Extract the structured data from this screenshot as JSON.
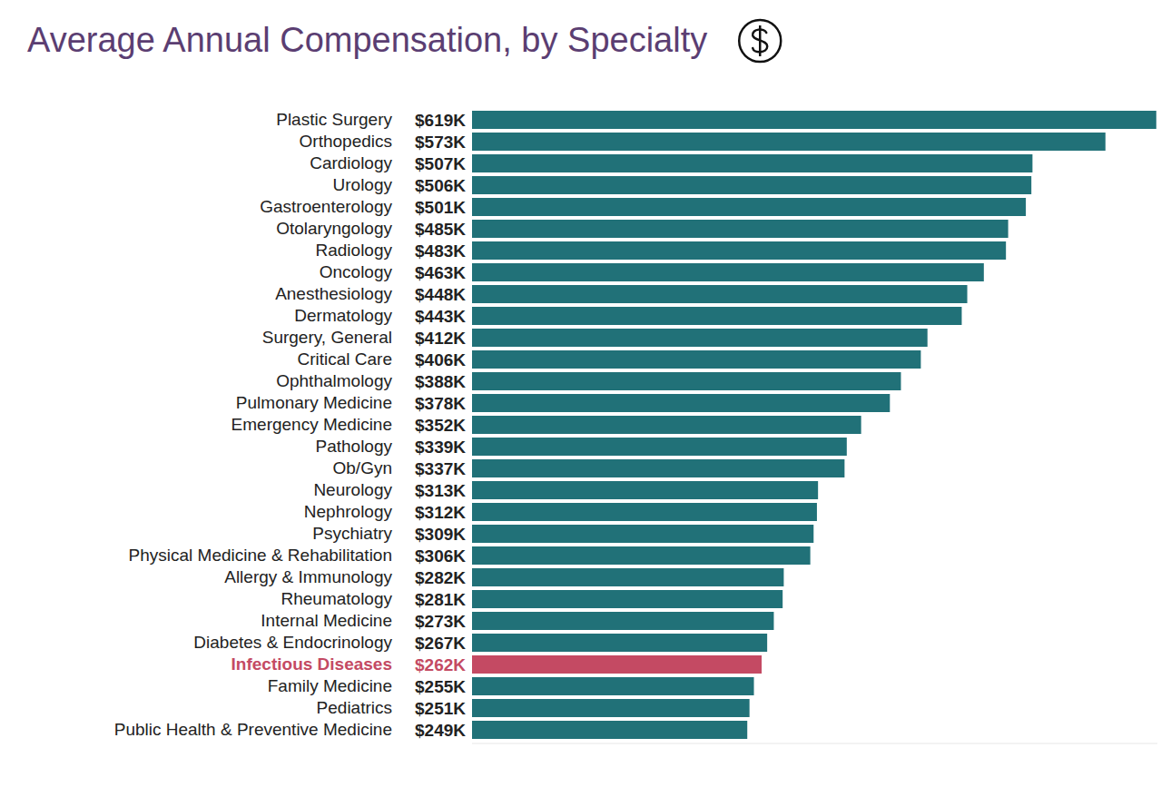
{
  "chart_data": {
    "type": "bar",
    "orientation": "horizontal",
    "title": "Average Annual Compensation, by Specialty",
    "categories": [
      "Plastic Surgery",
      "Orthopedics",
      "Cardiology",
      "Urology",
      "Gastroenterology",
      "Otolaryngology",
      "Radiology",
      "Oncology",
      "Anesthesiology",
      "Dermatology",
      "Surgery, General",
      "Critical Care",
      "Ophthalmology",
      "Pulmonary Medicine",
      "Emergency Medicine",
      "Pathology",
      "Ob/Gyn",
      "Neurology",
      "Nephrology",
      "Psychiatry",
      "Physical Medicine & Rehabilitation",
      "Allergy & Immunology",
      "Rheumatology",
      "Internal Medicine",
      "Diabetes & Endocrinology",
      "Infectious Diseases",
      "Family Medicine",
      "Pediatrics",
      "Public Health & Preventive Medicine"
    ],
    "values": [
      619,
      573,
      507,
      506,
      501,
      485,
      483,
      463,
      448,
      443,
      412,
      406,
      388,
      378,
      352,
      339,
      337,
      313,
      312,
      309,
      306,
      282,
      281,
      273,
      267,
      262,
      255,
      251,
      249
    ],
    "value_labels": [
      "$619K",
      "$573K",
      "$507K",
      "$506K",
      "$501K",
      "$485K",
      "$483K",
      "$463K",
      "$448K",
      "$443K",
      "$412K",
      "$406K",
      "$388K",
      "$378K",
      "$352K",
      "$339K",
      "$337K",
      "$313K",
      "$312K",
      "$309K",
      "$306K",
      "$282K",
      "$281K",
      "$273K",
      "$267K",
      "$262K",
      "$255K",
      "$251K",
      "$249K"
    ],
    "color": "#217178",
    "colors": [
      "#217178",
      "#217178",
      "#217178",
      "#217178",
      "#217178",
      "#217178",
      "#217178",
      "#217178",
      "#217178",
      "#217178",
      "#217178",
      "#217178",
      "#217178",
      "#217178",
      "#217178",
      "#217178",
      "#217178",
      "#217178",
      "#217178",
      "#217178",
      "#217178",
      "#217178",
      "#217178",
      "#217178",
      "#217178",
      "#c44a63",
      "#217178",
      "#217178",
      "#217178"
    ],
    "xlim": [
      0,
      620
    ],
    "data_labels": true,
    "tick_labels": false,
    "grid": false
  }
}
